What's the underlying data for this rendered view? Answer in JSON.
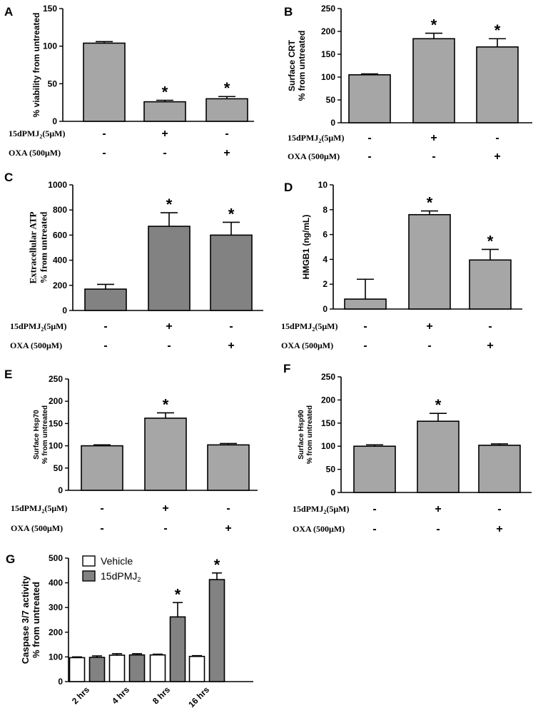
{
  "colors": {
    "bar_light": "#a6a6a6",
    "bar_dark": "#828282",
    "vehicle": "#ffffff",
    "axis": "#000000"
  },
  "treatment_labels": {
    "row1": "15dPMJ",
    "row1_sub": "2",
    "row1_tail": "(5μM)",
    "row2": "OXA (500μM)"
  },
  "chart_data": [
    {
      "panel": "A",
      "type": "bar",
      "ylabel": "% viability from untreated",
      "ylim": [
        0,
        150
      ],
      "yticks": [
        0,
        50,
        100,
        150
      ],
      "values": [
        104,
        26,
        30
      ],
      "errors": [
        2,
        2,
        3
      ],
      "significant": [
        false,
        true,
        true
      ],
      "row1_signs": [
        "-",
        "+",
        "-"
      ],
      "row2_signs": [
        "-",
        "-",
        "+"
      ],
      "color": "#a6a6a6"
    },
    {
      "panel": "B",
      "type": "bar",
      "ylabel": [
        "Surface CRT",
        "% from untreated"
      ],
      "ylim": [
        0,
        250
      ],
      "yticks": [
        0,
        50,
        100,
        150,
        200,
        250
      ],
      "values": [
        105,
        184,
        166
      ],
      "errors": [
        2,
        12,
        18
      ],
      "significant": [
        false,
        true,
        true
      ],
      "row1_signs": [
        "-",
        "+",
        "-"
      ],
      "row2_signs": [
        "-",
        "-",
        "+"
      ],
      "color": "#a6a6a6"
    },
    {
      "panel": "C",
      "type": "bar",
      "ylabel": [
        "Extracellular ATP",
        "% from untreated"
      ],
      "ylim": [
        0,
        1000
      ],
      "yticks": [
        0,
        200,
        400,
        600,
        800,
        1000
      ],
      "values": [
        170,
        670,
        600
      ],
      "errors": [
        38,
        108,
        102
      ],
      "significant": [
        false,
        true,
        true
      ],
      "row1_signs": [
        "-",
        "+",
        "-"
      ],
      "row2_signs": [
        "-",
        "-",
        "+"
      ],
      "color": "#828282"
    },
    {
      "panel": "D",
      "type": "bar",
      "ylabel": "HMGB1 (ng/mL)",
      "ylim": [
        0,
        10
      ],
      "yticks": [
        0,
        2,
        4,
        6,
        8,
        10
      ],
      "values": [
        0.8,
        7.6,
        3.95
      ],
      "errors": [
        1.6,
        0.3,
        0.85
      ],
      "significant": [
        false,
        true,
        true
      ],
      "row1_signs": [
        "-",
        "+",
        "-"
      ],
      "row2_signs": [
        "-",
        "-",
        "+"
      ],
      "color": "#a6a6a6"
    },
    {
      "panel": "E",
      "type": "bar",
      "ylabel": [
        "Surface Hsp70",
        "% from untreated"
      ],
      "ylim": [
        0,
        250
      ],
      "yticks": [
        0,
        50,
        100,
        150,
        200,
        250
      ],
      "values": [
        100,
        162,
        102
      ],
      "errors": [
        2,
        12,
        3
      ],
      "significant": [
        false,
        true,
        false
      ],
      "row1_signs": [
        "-",
        "+",
        "-"
      ],
      "row2_signs": [
        "-",
        "-",
        "+"
      ],
      "color": "#a6a6a6"
    },
    {
      "panel": "F",
      "type": "bar",
      "ylabel": [
        "Surface Hsp90",
        "% from untreated"
      ],
      "ylim": [
        0,
        250
      ],
      "yticks": [
        0,
        50,
        100,
        150,
        200,
        250
      ],
      "values": [
        100,
        154,
        102
      ],
      "errors": [
        3,
        17,
        3
      ],
      "significant": [
        false,
        true,
        false
      ],
      "row1_signs": [
        "-",
        "+",
        "-"
      ],
      "row2_signs": [
        "-",
        "-",
        "+"
      ],
      "color": "#a6a6a6"
    },
    {
      "panel": "G",
      "type": "bar",
      "ylabel": [
        "Caspase 3/7 activity",
        "% from untreated"
      ],
      "ylim": [
        0,
        500
      ],
      "yticks": [
        0,
        100,
        200,
        300,
        400,
        500
      ],
      "categories": [
        "2 hrs",
        "4 hrs",
        "8 hrs",
        "16 hrs"
      ],
      "series": [
        {
          "name": "Vehicle",
          "values": [
            97,
            107,
            108,
            102
          ],
          "errors": [
            3,
            6,
            3,
            3
          ],
          "color": "#ffffff"
        },
        {
          "name": "15dPMJ",
          "name_sub": "2",
          "values": [
            98,
            108,
            262,
            413
          ],
          "errors": [
            6,
            5,
            58,
            27
          ],
          "color": "#828282"
        }
      ],
      "significant": [
        false,
        false,
        true,
        true
      ]
    }
  ]
}
